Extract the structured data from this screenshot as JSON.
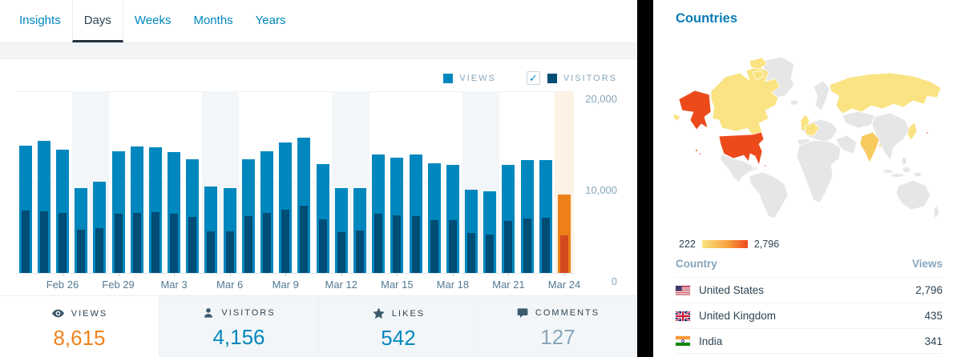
{
  "tabs": {
    "items": [
      {
        "label": "Insights",
        "active": false
      },
      {
        "label": "Days",
        "active": true
      },
      {
        "label": "Weeks",
        "active": false
      },
      {
        "label": "Months",
        "active": false
      },
      {
        "label": "Years",
        "active": false
      }
    ]
  },
  "legend": {
    "views_label": "VIEWS",
    "visitors_label": "VISITORS",
    "visitors_checked": true
  },
  "chart_data": {
    "type": "bar",
    "title": "Daily views and visitors",
    "ylim": [
      0,
      20000
    ],
    "y_ticks": [
      "20,000",
      "10,000",
      "0"
    ],
    "grid": true,
    "legend_position": "top-right",
    "series_names": [
      "Views",
      "Visitors"
    ],
    "days": [
      {
        "date": "Feb 24",
        "views": 14000,
        "visitors": 6850,
        "weekend": false,
        "today": false,
        "labeled": false
      },
      {
        "date": "Feb 25",
        "views": 14500,
        "visitors": 6760,
        "weekend": false,
        "today": false,
        "labeled": false
      },
      {
        "date": "Feb 26",
        "views": 13550,
        "visitors": 6610,
        "weekend": false,
        "today": false,
        "labeled": true
      },
      {
        "date": "Feb 27",
        "views": 9370,
        "visitors": 4750,
        "weekend": true,
        "today": false,
        "labeled": false
      },
      {
        "date": "Feb 28",
        "views": 10070,
        "visitors": 4900,
        "weekend": true,
        "today": false,
        "labeled": false
      },
      {
        "date": "Feb 29",
        "views": 13370,
        "visitors": 6520,
        "weekend": false,
        "today": false,
        "labeled": true
      },
      {
        "date": "Mar 1",
        "views": 13880,
        "visitors": 6640,
        "weekend": false,
        "today": false,
        "labeled": false
      },
      {
        "date": "Mar 2",
        "views": 13850,
        "visitors": 6670,
        "weekend": false,
        "today": false,
        "labeled": false
      },
      {
        "date": "Mar 3",
        "views": 13340,
        "visitors": 6490,
        "weekend": false,
        "today": false,
        "labeled": true
      },
      {
        "date": "Mar 4",
        "views": 12530,
        "visitors": 6160,
        "weekend": false,
        "today": false,
        "labeled": false
      },
      {
        "date": "Mar 5",
        "views": 9520,
        "visitors": 4570,
        "weekend": true,
        "today": false,
        "labeled": false
      },
      {
        "date": "Mar 6",
        "views": 9370,
        "visitors": 4570,
        "weekend": true,
        "today": false,
        "labeled": true
      },
      {
        "date": "Mar 7",
        "views": 12500,
        "visitors": 6280,
        "weekend": false,
        "today": false,
        "labeled": false
      },
      {
        "date": "Mar 8",
        "views": 13370,
        "visitors": 6610,
        "weekend": false,
        "today": false,
        "labeled": false
      },
      {
        "date": "Mar 9",
        "views": 14330,
        "visitors": 7000,
        "weekend": false,
        "today": false,
        "labeled": true
      },
      {
        "date": "Mar 10",
        "views": 14930,
        "visitors": 7390,
        "weekend": false,
        "today": false,
        "labeled": false
      },
      {
        "date": "Mar 11",
        "views": 11950,
        "visitors": 5860,
        "weekend": false,
        "today": false,
        "labeled": false
      },
      {
        "date": "Mar 12",
        "views": 9340,
        "visitors": 4510,
        "weekend": true,
        "today": false,
        "labeled": true
      },
      {
        "date": "Mar 13",
        "views": 9340,
        "visitors": 4690,
        "weekend": true,
        "today": false,
        "labeled": false
      },
      {
        "date": "Mar 14",
        "views": 13060,
        "visitors": 6520,
        "weekend": false,
        "today": false,
        "labeled": false
      },
      {
        "date": "Mar 15",
        "views": 12650,
        "visitors": 6340,
        "weekend": false,
        "today": false,
        "labeled": true
      },
      {
        "date": "Mar 16",
        "views": 13060,
        "visitors": 6280,
        "weekend": false,
        "today": false,
        "labeled": false
      },
      {
        "date": "Mar 17",
        "views": 12070,
        "visitors": 5830,
        "weekend": false,
        "today": false,
        "labeled": false
      },
      {
        "date": "Mar 18",
        "views": 11870,
        "visitors": 5800,
        "weekend": false,
        "today": false,
        "labeled": true
      },
      {
        "date": "Mar 19",
        "views": 9160,
        "visitors": 4370,
        "weekend": true,
        "today": false,
        "labeled": false
      },
      {
        "date": "Mar 20",
        "views": 8950,
        "visitors": 4210,
        "weekend": true,
        "today": false,
        "labeled": false
      },
      {
        "date": "Mar 21",
        "views": 11900,
        "visitors": 5740,
        "weekend": false,
        "today": false,
        "labeled": true
      },
      {
        "date": "Mar 22",
        "views": 12410,
        "visitors": 5950,
        "weekend": false,
        "today": false,
        "labeled": false
      },
      {
        "date": "Mar 23",
        "views": 12380,
        "visitors": 6100,
        "weekend": false,
        "today": false,
        "labeled": false
      },
      {
        "date": "Mar 24",
        "views": 8615,
        "visitors": 4156,
        "weekend": false,
        "today": true,
        "labeled": true
      }
    ]
  },
  "summary": {
    "items": [
      {
        "label": "VIEWS",
        "value": "8,615",
        "icon": "eye-icon"
      },
      {
        "label": "VISITORS",
        "value": "4,156",
        "icon": "person-icon"
      },
      {
        "label": "LIKES",
        "value": "542",
        "icon": "star-icon"
      },
      {
        "label": "COMMENTS",
        "value": "127",
        "icon": "comment-icon"
      }
    ]
  },
  "countries": {
    "title": "Countries",
    "scale_min": "222",
    "scale_max": "2,796",
    "table": {
      "country_header": "Country",
      "views_header": "Views"
    },
    "rows": [
      {
        "name": "United States",
        "views": "2,796",
        "flag": "us"
      },
      {
        "name": "United Kingdom",
        "views": "435",
        "flag": "gb"
      },
      {
        "name": "India",
        "views": "341",
        "flag": "in"
      }
    ]
  },
  "colors": {
    "accent": "#0087be",
    "views": "#0087be",
    "visitors": "#004d76",
    "today_views": "#ee8019",
    "today_visitors": "#d2491f",
    "band_weekend": "#f3f6f8",
    "band_today": "#fdf2e6",
    "orange": "#f0821e",
    "grid": "#e9eff3",
    "text_dark": "#2e4453",
    "text_gray_blue": "#87a6bc",
    "map_none": "#e6e6e6",
    "map_low": "#fae382",
    "map_mid": "#f7cb5f",
    "map_high": "#ed4a1c"
  }
}
